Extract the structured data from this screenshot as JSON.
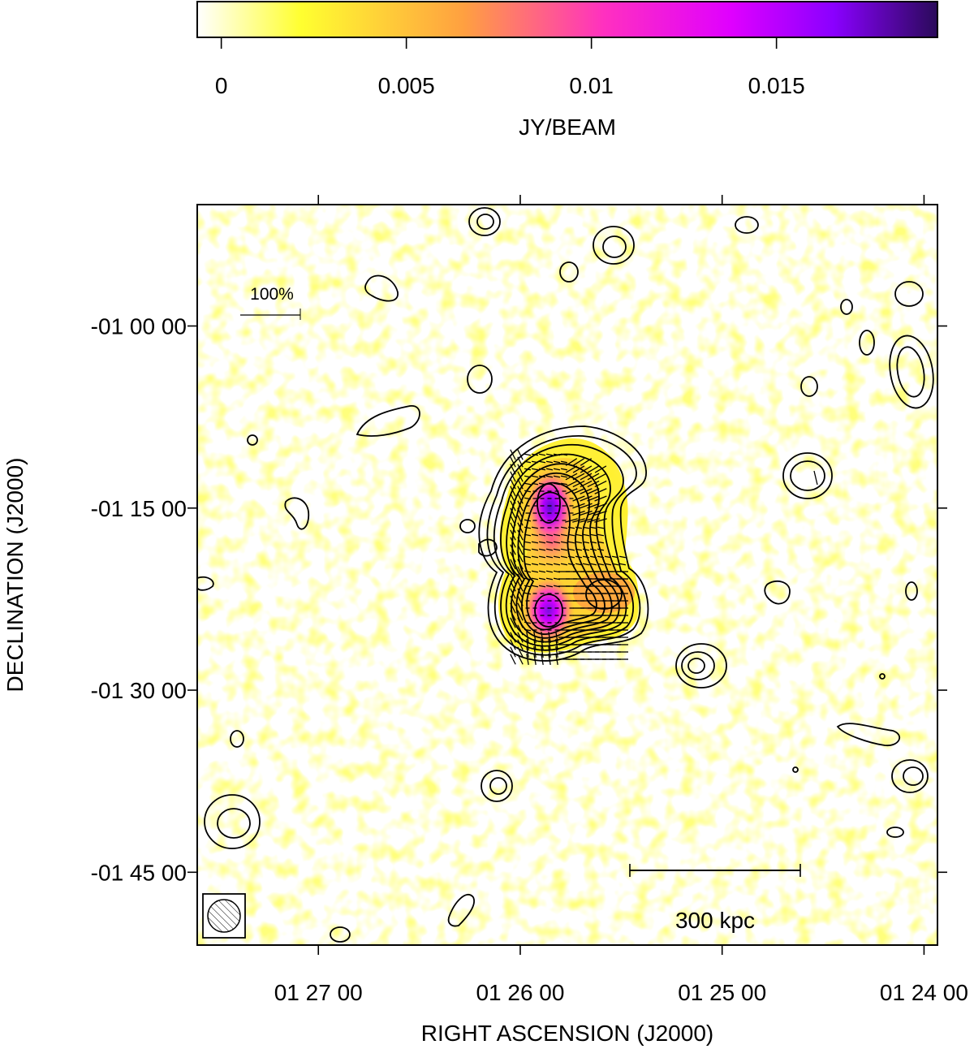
{
  "colorbar": {
    "label": "JY/BEAM",
    "range": [
      -0.00065,
      0.01935
    ],
    "ticks": [
      {
        "value": 0,
        "label": "0"
      },
      {
        "value": 0.005,
        "label": "0.005"
      },
      {
        "value": 0.01,
        "label": "0.01"
      },
      {
        "value": 0.015,
        "label": "0.015"
      }
    ],
    "colormap": [
      "#ffffff",
      "#ffff00",
      "#ff9944",
      "#ff00ff",
      "#8800ff",
      "#330066"
    ]
  },
  "chart_data": {
    "type": "heatmap",
    "xlabel": "RIGHT ASCENSION  (J2000)",
    "ylabel": "DECLINATION  (J2000)",
    "x_ticks": [
      {
        "value": "01 27 00",
        "label": "01 27 00"
      },
      {
        "value": "01 26 00",
        "label": "01 26 00"
      },
      {
        "value": "01 25 00",
        "label": "01 25 00"
      },
      {
        "value": "01 24 00",
        "label": "01 24 00"
      }
    ],
    "y_ticks": [
      {
        "value": "-01 00 00",
        "label": "-01 00 00"
      },
      {
        "value": "-01 15 00",
        "label": "-01 15 00"
      },
      {
        "value": "-01 30 00",
        "label": "-01 30 00"
      },
      {
        "value": "-01 45 00",
        "label": "-01 45 00"
      }
    ],
    "xlim": [
      "01 27 36",
      "01 23 56"
    ],
    "ylim": [
      "-00 50 00",
      "-01 51 00"
    ],
    "peak_emission": [
      {
        "name": "north peak",
        "ra": "01 26 02",
        "dec": "-01 16 00",
        "value": 0.017
      },
      {
        "name": "south peak",
        "ra": "01 26 04",
        "dec": "-01 24 00",
        "value": 0.016
      }
    ],
    "annotations": {
      "polarization_scale_label": "100%",
      "scalebar_label": "300 kpc",
      "beam": "hatched circle"
    },
    "contours": true,
    "polarization_vectors": true
  }
}
